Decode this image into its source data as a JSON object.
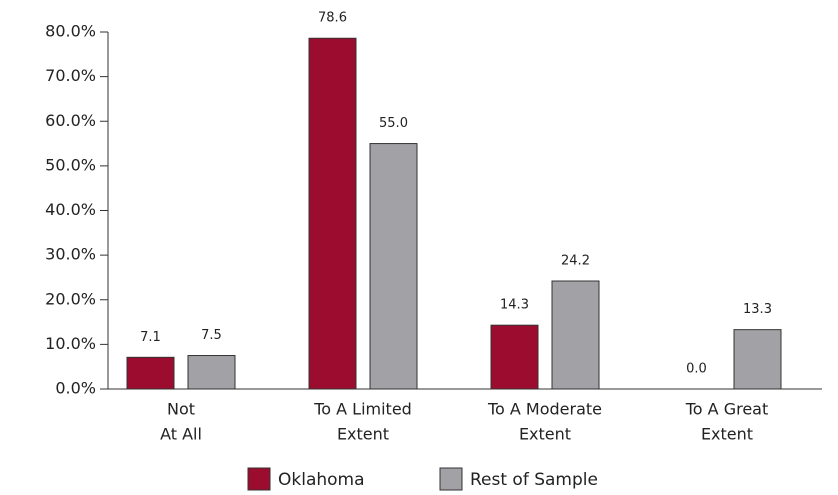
{
  "chart_data": {
    "type": "bar",
    "categories": [
      [
        "Not",
        "At All"
      ],
      [
        "To A Limited",
        "Extent"
      ],
      [
        "To A Moderate",
        "Extent"
      ],
      [
        "To A Great",
        "Extent"
      ]
    ],
    "series": [
      {
        "name": "Oklahoma",
        "color": "#9c0c2e",
        "values": [
          7.1,
          78.6,
          14.3,
          0.0
        ],
        "value_labels": [
          "7.1",
          "78.6",
          "14.3",
          "0.0"
        ]
      },
      {
        "name": "Rest of Sample",
        "color": "#a2a2a6",
        "values": [
          7.5,
          55.0,
          24.2,
          13.3
        ],
        "value_labels": [
          "7.5",
          "55.0",
          "24.2",
          "13.3"
        ]
      }
    ],
    "ylim": [
      0,
      80
    ],
    "yticks": [
      {
        "value": 0,
        "label": "0.0%"
      },
      {
        "value": 10,
        "label": "10.0%"
      },
      {
        "value": 20,
        "label": "20.0%"
      },
      {
        "value": 30,
        "label": "30.0%"
      },
      {
        "value": 40,
        "label": "40.0%"
      },
      {
        "value": 50,
        "label": "50.0%"
      },
      {
        "value": 60,
        "label": "60.0%"
      },
      {
        "value": 70,
        "label": "70.0%"
      },
      {
        "value": 80,
        "label": "80.0%"
      }
    ],
    "grid": false,
    "legend": "bottom"
  }
}
